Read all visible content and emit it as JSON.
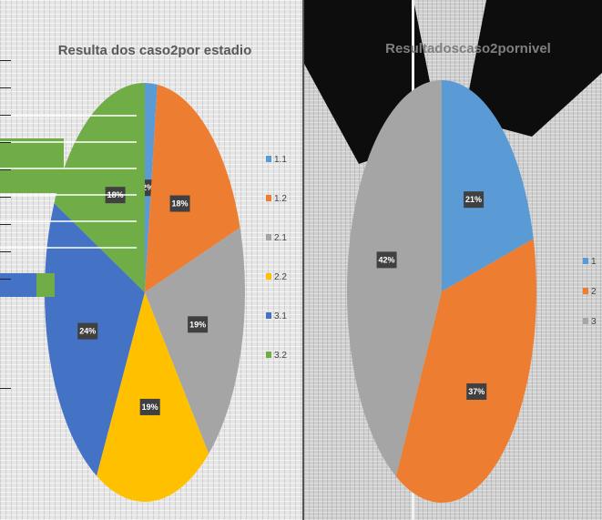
{
  "chart_data": [
    {
      "type": "pie",
      "title": "Resulta dos caso2por estadio",
      "categories": [
        "1.1",
        "1.2",
        "2.1",
        "2.2",
        "3.1",
        "3.2"
      ],
      "values": [
        2,
        18,
        19,
        19,
        24,
        18
      ],
      "data_labels": [
        "2%",
        "18%",
        "19%",
        "19%",
        "24%",
        "18%"
      ],
      "colors": [
        "#5b9bd5",
        "#ed7d31",
        "#a5a5a5",
        "#ffc000",
        "#4472c4",
        "#70ad47"
      ],
      "legend_position": "right"
    },
    {
      "type": "pie",
      "title": "Resultadoscaso2pornivel",
      "categories": [
        "1",
        "2",
        "3"
      ],
      "values": [
        21,
        37,
        42
      ],
      "data_labels": [
        "21%",
        "37%",
        "42%"
      ],
      "colors": [
        "#5b9bd5",
        "#ed7d31",
        "#a5a5a5"
      ],
      "legend_position": "right"
    }
  ]
}
